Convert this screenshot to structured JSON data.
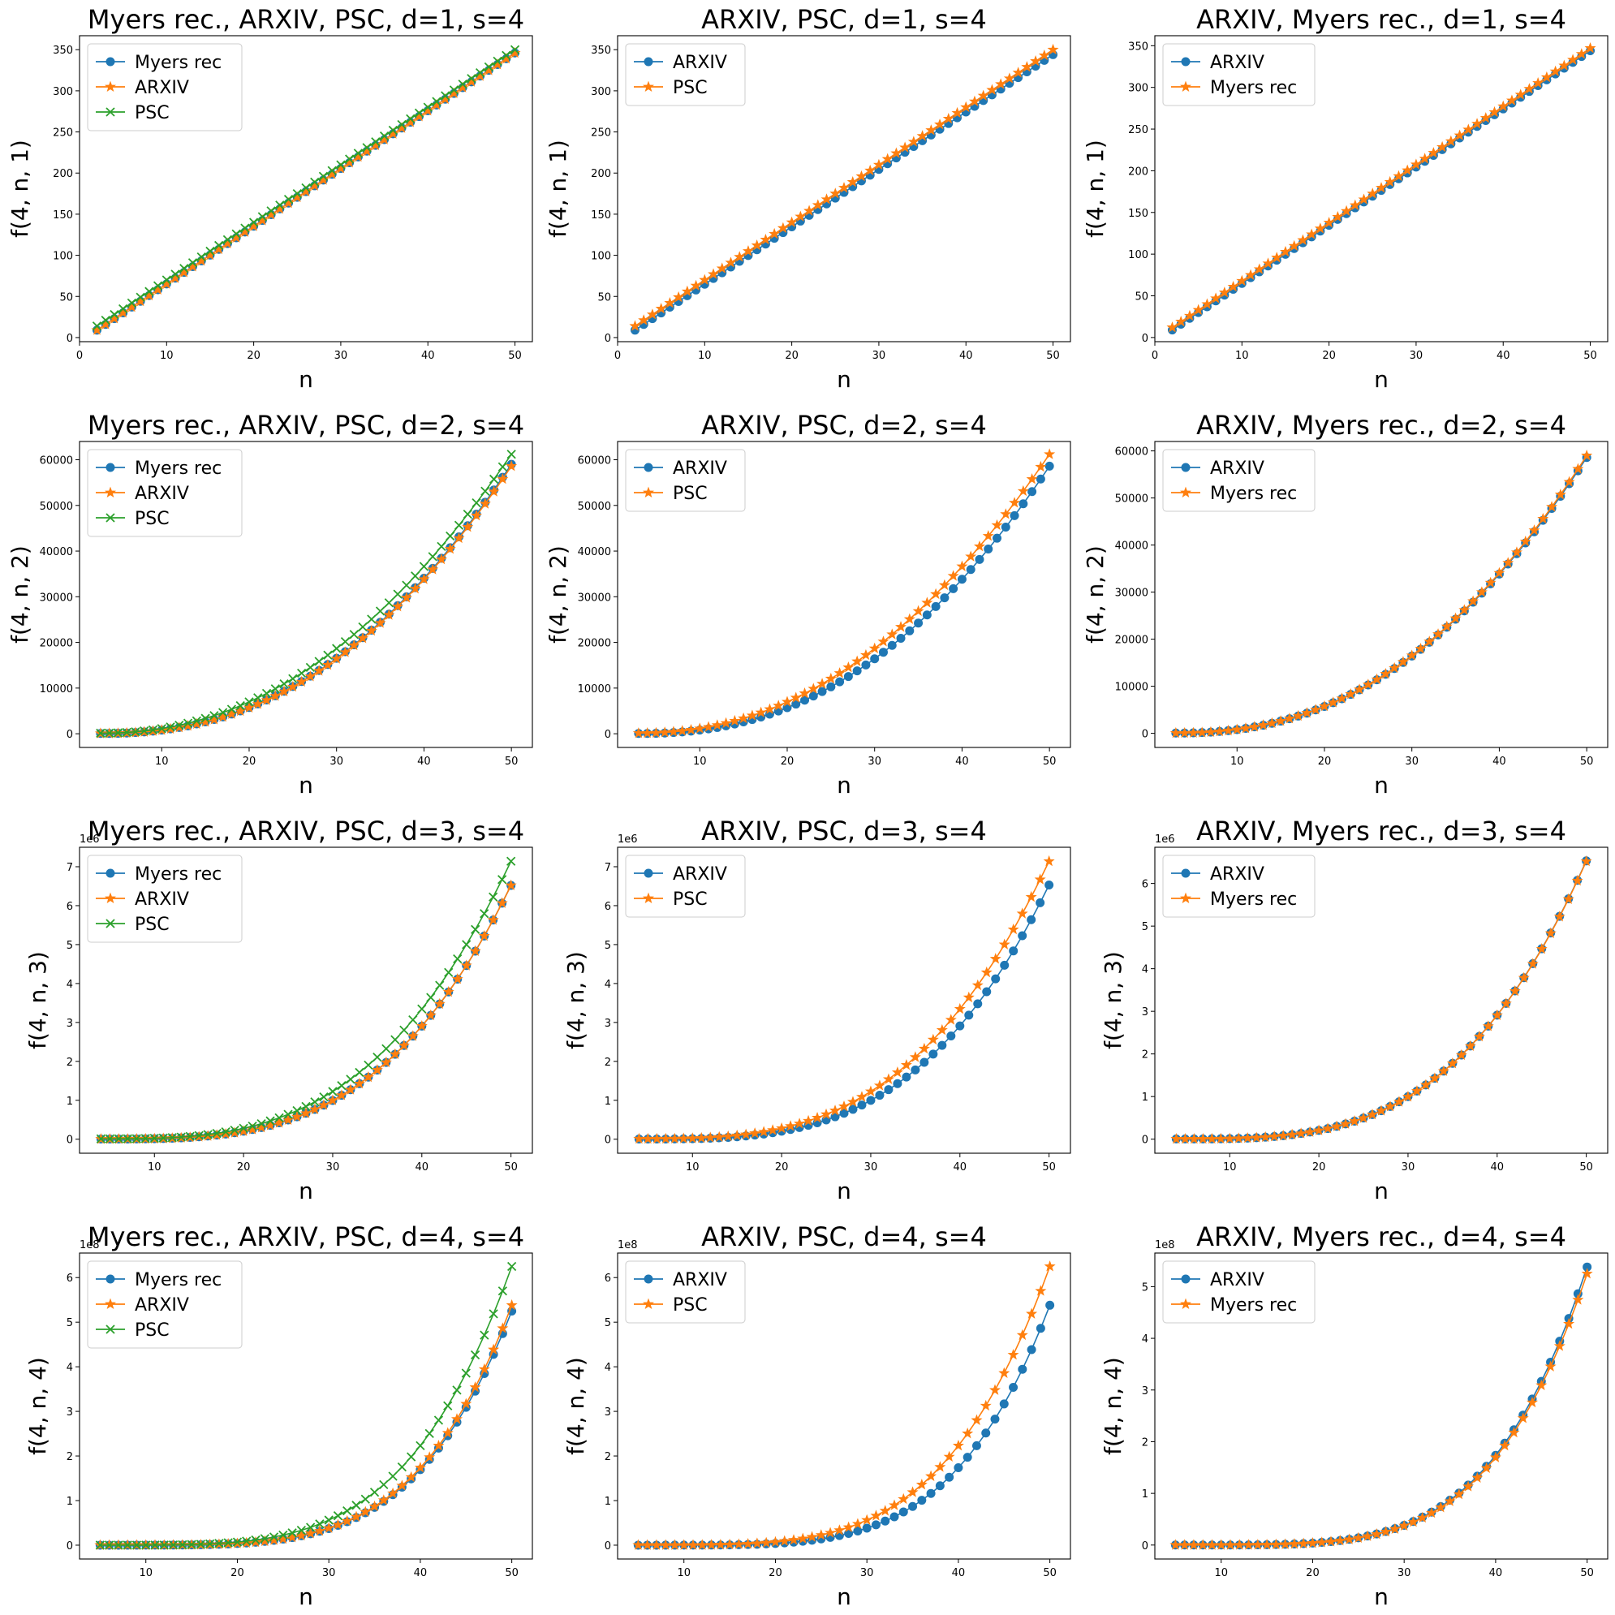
{
  "colors": {
    "myers": "#1f77b4",
    "arxiv": "#ff7f0e",
    "psc": "#2ca02c"
  },
  "chart_data": [
    {
      "type": "line",
      "title": "Myers rec., ARXIV, PSC, d=1, s=4",
      "xlabel": "n",
      "ylabel": "f(4, n, 1)",
      "xlim": [
        0,
        52
      ],
      "ylim": [
        -5,
        367
      ],
      "xticks": [
        0,
        10,
        20,
        30,
        40,
        50
      ],
      "yticks": [
        0,
        50,
        100,
        150,
        200,
        250,
        300,
        350
      ],
      "ytick_labels": [
        "0",
        "50",
        "100",
        "150",
        "200",
        "250",
        "300",
        "350"
      ],
      "offset_label": "",
      "legend": "top-left",
      "n_start": 2,
      "n_end": 50,
      "legend_labels": [
        "Myers rec",
        "ARXIV",
        "PSC"
      ],
      "series": [
        {
          "name": "Myers rec",
          "color": "#1f77b4",
          "marker": "o",
          "y_start": 9,
          "y_end": 346,
          "exponent": 1
        },
        {
          "name": "ARXIV",
          "color": "#ff7f0e",
          "marker": "*",
          "y_start": 9,
          "y_end": 346,
          "exponent": 1
        },
        {
          "name": "PSC",
          "color": "#2ca02c",
          "marker": "x",
          "y_start": 14,
          "y_end": 350,
          "exponent": 1
        }
      ]
    },
    {
      "type": "line",
      "title": "ARXIV, PSC, d=1, s=4",
      "xlabel": "n",
      "ylabel": "f(4, n, 1)",
      "xlim": [
        0,
        52
      ],
      "ylim": [
        -5,
        367
      ],
      "xticks": [
        0,
        10,
        20,
        30,
        40,
        50
      ],
      "yticks": [
        0,
        50,
        100,
        150,
        200,
        250,
        300,
        350
      ],
      "ytick_labels": [
        "0",
        "50",
        "100",
        "150",
        "200",
        "250",
        "300",
        "350"
      ],
      "offset_label": "",
      "legend": "top-left",
      "n_start": 2,
      "n_end": 50,
      "legend_labels": [
        "ARXIV",
        "PSC"
      ],
      "series": [
        {
          "name": "ARXIV",
          "color": "#1f77b4",
          "marker": "o",
          "y_start": 9,
          "y_end": 344,
          "exponent": 1
        },
        {
          "name": "PSC",
          "color": "#ff7f0e",
          "marker": "*",
          "y_start": 14,
          "y_end": 350,
          "exponent": 1
        }
      ]
    },
    {
      "type": "line",
      "title": "ARXIV, Myers rec., d=1, s=4",
      "xlabel": "n",
      "ylabel": "f(4, n, 1)",
      "xlim": [
        0,
        52
      ],
      "ylim": [
        -5,
        362
      ],
      "xticks": [
        0,
        10,
        20,
        30,
        40,
        50
      ],
      "yticks": [
        0,
        50,
        100,
        150,
        200,
        250,
        300,
        350
      ],
      "ytick_labels": [
        "0",
        "50",
        "100",
        "150",
        "200",
        "250",
        "300",
        "350"
      ],
      "offset_label": "",
      "legend": "top-left",
      "n_start": 2,
      "n_end": 50,
      "legend_labels": [
        "ARXIV",
        "Myers rec"
      ],
      "series": [
        {
          "name": "ARXIV",
          "color": "#1f77b4",
          "marker": "o",
          "y_start": 9,
          "y_end": 344,
          "exponent": 1
        },
        {
          "name": "Myers rec",
          "color": "#ff7f0e",
          "marker": "*",
          "y_start": 12,
          "y_end": 347,
          "exponent": 1
        }
      ]
    },
    {
      "type": "line",
      "title": "Myers rec., ARXIV, PSC, d=2, s=4",
      "xlabel": "n",
      "ylabel": "f(4, n, 2)",
      "xlim": [
        0.6,
        52.4
      ],
      "ylim": [
        -3000,
        64000
      ],
      "xticks": [
        10,
        20,
        30,
        40,
        50
      ],
      "yticks": [
        0,
        10000,
        20000,
        30000,
        40000,
        50000,
        60000
      ],
      "ytick_labels": [
        "0",
        "10000",
        "20000",
        "30000",
        "40000",
        "50000",
        "60000"
      ],
      "offset_label": "",
      "legend": "top-left",
      "n_start": 3,
      "n_end": 50,
      "legend_labels": [
        "Myers rec",
        "ARXIV",
        "PSC"
      ],
      "series": [
        {
          "name": "Myers rec",
          "color": "#1f77b4",
          "marker": "o",
          "y_start": 60,
          "y_end": 59000,
          "exponent": 2.3
        },
        {
          "name": "ARXIV",
          "color": "#ff7f0e",
          "marker": "*",
          "y_start": 60,
          "y_end": 58600,
          "exponent": 2.3
        },
        {
          "name": "PSC",
          "color": "#2ca02c",
          "marker": "x",
          "y_start": 120,
          "y_end": 61200,
          "exponent": 2.15
        }
      ]
    },
    {
      "type": "line",
      "title": "ARXIV, PSC, d=2, s=4",
      "xlabel": "n",
      "ylabel": "f(4, n, 2)",
      "xlim": [
        0.6,
        52.4
      ],
      "ylim": [
        -3000,
        64000
      ],
      "xticks": [
        10,
        20,
        30,
        40,
        50
      ],
      "yticks": [
        0,
        10000,
        20000,
        30000,
        40000,
        50000,
        60000
      ],
      "ytick_labels": [
        "0",
        "10000",
        "20000",
        "30000",
        "40000",
        "50000",
        "60000"
      ],
      "offset_label": "",
      "legend": "top-left",
      "n_start": 3,
      "n_end": 50,
      "legend_labels": [
        "ARXIV",
        "PSC"
      ],
      "series": [
        {
          "name": "ARXIV",
          "color": "#1f77b4",
          "marker": "o",
          "y_start": 60,
          "y_end": 58600,
          "exponent": 2.3
        },
        {
          "name": "PSC",
          "color": "#ff7f0e",
          "marker": "*",
          "y_start": 120,
          "y_end": 61200,
          "exponent": 2.15
        }
      ]
    },
    {
      "type": "line",
      "title": "ARXIV, Myers rec., d=2, s=4",
      "xlabel": "n",
      "ylabel": "f(4, n, 2)",
      "xlim": [
        0.6,
        52.4
      ],
      "ylim": [
        -3000,
        62000
      ],
      "xticks": [
        10,
        20,
        30,
        40,
        50
      ],
      "yticks": [
        0,
        10000,
        20000,
        30000,
        40000,
        50000,
        60000
      ],
      "ytick_labels": [
        "0",
        "10000",
        "20000",
        "30000",
        "40000",
        "50000",
        "60000"
      ],
      "offset_label": "",
      "legend": "top-left",
      "n_start": 3,
      "n_end": 50,
      "legend_labels": [
        "ARXIV",
        "Myers rec"
      ],
      "series": [
        {
          "name": "ARXIV",
          "color": "#1f77b4",
          "marker": "o",
          "y_start": 60,
          "y_end": 58600,
          "exponent": 2.3
        },
        {
          "name": "Myers rec",
          "color": "#ff7f0e",
          "marker": "*",
          "y_start": 60,
          "y_end": 59000,
          "exponent": 2.3
        }
      ]
    },
    {
      "type": "line",
      "title": "Myers rec., ARXIV, PSC, d=3, s=4",
      "xlabel": "n",
      "ylabel": "f(4, n, 3)",
      "xlim": [
        1.6,
        52.4
      ],
      "ylim": [
        -0.36,
        7.5
      ],
      "xticks": [
        10,
        20,
        30,
        40,
        50
      ],
      "yticks": [
        0,
        1,
        2,
        3,
        4,
        5,
        6,
        7
      ],
      "ytick_labels": [
        "0",
        "1",
        "2",
        "3",
        "4",
        "5",
        "6",
        "7"
      ],
      "offset_label": "1e6",
      "legend": "top-left",
      "n_start": 4,
      "n_end": 50,
      "legend_labels": [
        "Myers rec",
        "ARXIV",
        "PSC"
      ],
      "series": [
        {
          "name": "Myers rec",
          "color": "#1f77b4",
          "marker": "o",
          "y_start": 0.005,
          "y_end": 6.52,
          "exponent": 3.3
        },
        {
          "name": "ARXIV",
          "color": "#ff7f0e",
          "marker": "*",
          "y_start": 0.005,
          "y_end": 6.52,
          "exponent": 3.3
        },
        {
          "name": "PSC",
          "color": "#2ca02c",
          "marker": "x",
          "y_start": 0.01,
          "y_end": 7.14,
          "exponent": 3.1
        }
      ]
    },
    {
      "type": "line",
      "title": "ARXIV, PSC, d=3, s=4",
      "xlabel": "n",
      "ylabel": "f(4, n, 3)",
      "xlim": [
        1.6,
        52.4
      ],
      "ylim": [
        -0.36,
        7.5
      ],
      "xticks": [
        10,
        20,
        30,
        40,
        50
      ],
      "yticks": [
        0,
        1,
        2,
        3,
        4,
        5,
        6,
        7
      ],
      "ytick_labels": [
        "0",
        "1",
        "2",
        "3",
        "4",
        "5",
        "6",
        "7"
      ],
      "offset_label": "1e6",
      "legend": "top-left",
      "n_start": 4,
      "n_end": 50,
      "legend_labels": [
        "ARXIV",
        "PSC"
      ],
      "series": [
        {
          "name": "ARXIV",
          "color": "#1f77b4",
          "marker": "o",
          "y_start": 0.005,
          "y_end": 6.53,
          "exponent": 3.3
        },
        {
          "name": "PSC",
          "color": "#ff7f0e",
          "marker": "*",
          "y_start": 0.01,
          "y_end": 7.14,
          "exponent": 3.1
        }
      ]
    },
    {
      "type": "line",
      "title": "ARXIV, Myers rec., d=3, s=4",
      "xlabel": "n",
      "ylabel": "f(4, n, 3)",
      "xlim": [
        1.6,
        52.4
      ],
      "ylim": [
        -0.33,
        6.85
      ],
      "xticks": [
        10,
        20,
        30,
        40,
        50
      ],
      "yticks": [
        0,
        1,
        2,
        3,
        4,
        5,
        6
      ],
      "ytick_labels": [
        "0",
        "1",
        "2",
        "3",
        "4",
        "5",
        "6"
      ],
      "offset_label": "1e6",
      "legend": "top-left",
      "n_start": 4,
      "n_end": 50,
      "legend_labels": [
        "ARXIV",
        "Myers rec"
      ],
      "series": [
        {
          "name": "ARXIV",
          "color": "#1f77b4",
          "marker": "o",
          "y_start": 0.005,
          "y_end": 6.53,
          "exponent": 3.3
        },
        {
          "name": "Myers rec",
          "color": "#ff7f0e",
          "marker": "*",
          "y_start": 0.005,
          "y_end": 6.52,
          "exponent": 3.3
        }
      ]
    },
    {
      "type": "line",
      "title": "Myers rec., ARXIV, PSC, d=4, s=4",
      "xlabel": "n",
      "ylabel": "f(4, n, 4)",
      "xlim": [
        2.75,
        52.25
      ],
      "ylim": [
        -0.31,
        6.55
      ],
      "xticks": [
        10,
        20,
        30,
        40,
        50
      ],
      "yticks": [
        0,
        1,
        2,
        3,
        4,
        5,
        6
      ],
      "ytick_labels": [
        "0",
        "1",
        "2",
        "3",
        "4",
        "5",
        "6"
      ],
      "offset_label": "1e8",
      "legend": "top-left",
      "n_start": 5,
      "n_end": 50,
      "legend_labels": [
        "Myers rec",
        "ARXIV",
        "PSC"
      ],
      "series": [
        {
          "name": "Myers rec",
          "color": "#1f77b4",
          "marker": "o",
          "y_start": 0.0005,
          "y_end": 5.25,
          "exponent": 4.5
        },
        {
          "name": "ARXIV",
          "color": "#ff7f0e",
          "marker": "*",
          "y_start": 0.0005,
          "y_end": 5.38,
          "exponent": 4.5
        },
        {
          "name": "PSC",
          "color": "#2ca02c",
          "marker": "x",
          "y_start": 0.001,
          "y_end": 6.25,
          "exponent": 4.1
        }
      ]
    },
    {
      "type": "line",
      "title": "ARXIV, PSC, d=4, s=4",
      "xlabel": "n",
      "ylabel": "f(4, n, 4)",
      "xlim": [
        2.75,
        52.25
      ],
      "ylim": [
        -0.31,
        6.55
      ],
      "xticks": [
        10,
        20,
        30,
        40,
        50
      ],
      "yticks": [
        0,
        1,
        2,
        3,
        4,
        5,
        6
      ],
      "ytick_labels": [
        "0",
        "1",
        "2",
        "3",
        "4",
        "5",
        "6"
      ],
      "offset_label": "1e8",
      "legend": "top-left",
      "n_start": 5,
      "n_end": 50,
      "legend_labels": [
        "ARXIV",
        "PSC"
      ],
      "series": [
        {
          "name": "ARXIV",
          "color": "#1f77b4",
          "marker": "o",
          "y_start": 0.0005,
          "y_end": 5.38,
          "exponent": 4.5
        },
        {
          "name": "PSC",
          "color": "#ff7f0e",
          "marker": "*",
          "y_start": 0.001,
          "y_end": 6.25,
          "exponent": 4.1
        }
      ]
    },
    {
      "type": "line",
      "title": "ARXIV, Myers rec., d=4, s=4",
      "xlabel": "n",
      "ylabel": "f(4, n, 4)",
      "xlim": [
        2.75,
        52.25
      ],
      "ylim": [
        -0.27,
        5.65
      ],
      "xticks": [
        10,
        20,
        30,
        40,
        50
      ],
      "yticks": [
        0,
        1,
        2,
        3,
        4,
        5
      ],
      "ytick_labels": [
        "0",
        "1",
        "2",
        "3",
        "4",
        "5"
      ],
      "offset_label": "1e8",
      "legend": "top-left",
      "n_start": 5,
      "n_end": 50,
      "legend_labels": [
        "ARXIV",
        "Myers rec"
      ],
      "series": [
        {
          "name": "ARXIV",
          "color": "#1f77b4",
          "marker": "o",
          "y_start": 0.0005,
          "y_end": 5.38,
          "exponent": 4.5
        },
        {
          "name": "Myers rec",
          "color": "#ff7f0e",
          "marker": "*",
          "y_start": 0.0005,
          "y_end": 5.25,
          "exponent": 4.5
        }
      ]
    }
  ]
}
